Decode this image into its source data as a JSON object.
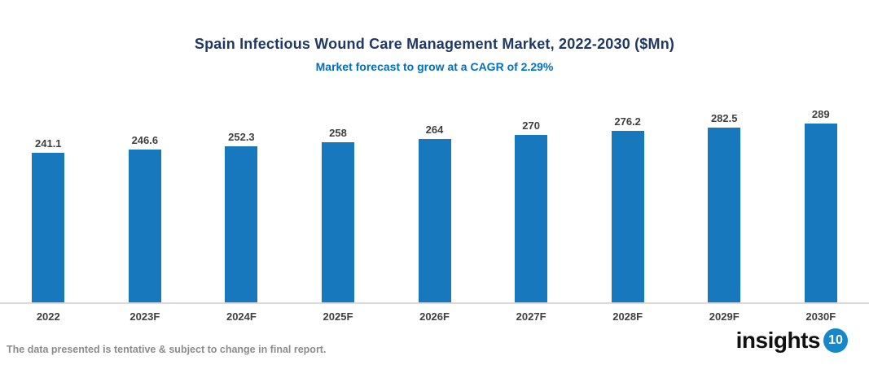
{
  "chart_data": {
    "type": "bar",
    "title": "Spain Infectious Wound Care Management Market, 2022-2030 ($Mn)",
    "subtitle": "Market forecast to grow at a CAGR of 2.29%",
    "categories": [
      "2022",
      "2023F",
      "2024F",
      "2025F",
      "2026F",
      "2027F",
      "2028F",
      "2029F",
      "2030F"
    ],
    "values": [
      241.1,
      246.6,
      252.3,
      258,
      264,
      270,
      276.2,
      282.5,
      289
    ],
    "xlabel": "",
    "ylabel": "",
    "ylim": [
      0,
      300
    ],
    "grid": false,
    "legend": false,
    "bar_color": "#1778BE",
    "title_color": "#1F3864",
    "subtitle_color": "#0070C0",
    "label_color": "#404040",
    "axis_line_color": "#D9D9D9"
  },
  "footer": {
    "disclaimer": "The data presented is tentative & subject to change in final report.",
    "disclaimer_color": "#8C8C8C",
    "logo_text": "insights",
    "logo_badge": "10",
    "logo_badge_color": "#1488CA"
  }
}
